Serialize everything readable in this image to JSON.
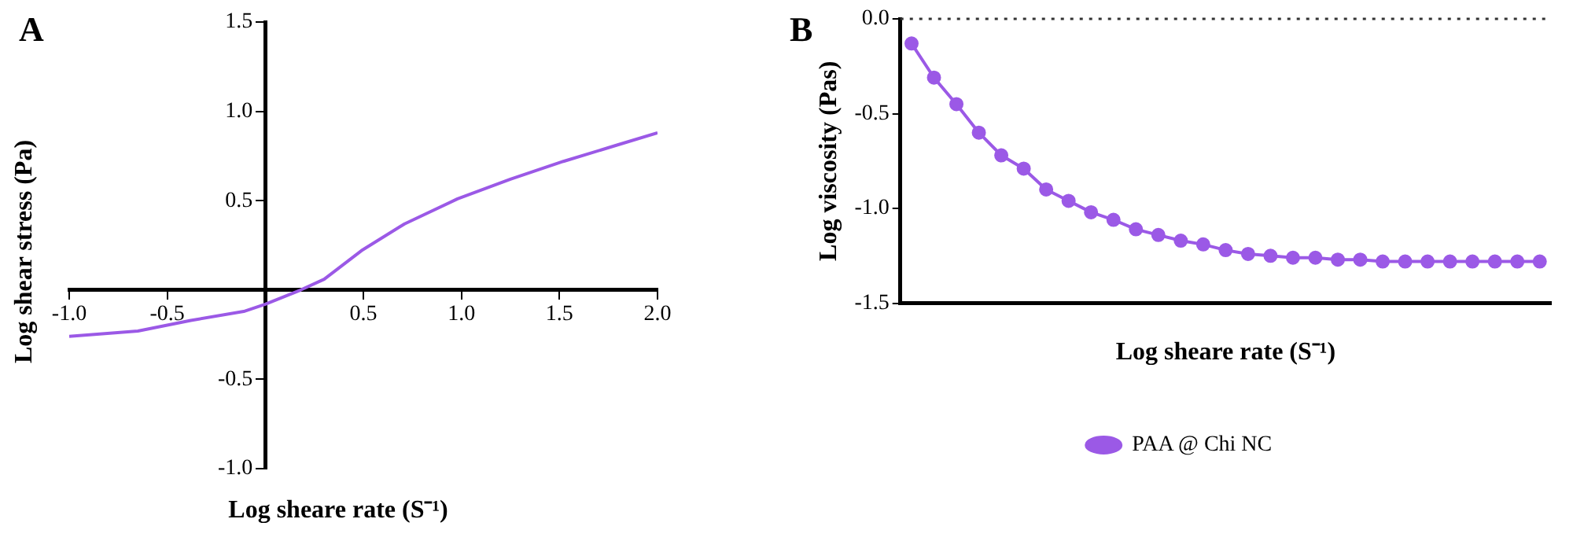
{
  "chart_data": [
    {
      "type": "line",
      "title": "A",
      "xlabel": "Log sheare rate (S⁻¹)",
      "ylabel": "Log shear stress (Pa)",
      "x": [
        -1.0,
        -0.65,
        -0.38,
        -0.11,
        0.0,
        0.18,
        0.3,
        0.49,
        0.71,
        0.98,
        1.25,
        1.52,
        1.79,
        2.0
      ],
      "series": [
        {
          "color": "#9b59e6",
          "values": [
            -0.26,
            -0.23,
            -0.17,
            -0.12,
            -0.08,
            0.0,
            0.06,
            0.22,
            0.37,
            0.51,
            0.62,
            0.72,
            0.81,
            0.88
          ]
        }
      ],
      "xlim": [
        -1.0,
        2.0
      ],
      "ylim": [
        -1.0,
        1.5
      ],
      "xticks": [
        {
          "value": -1.0,
          "label": "-1.0"
        },
        {
          "value": -0.5,
          "label": "-0.5"
        },
        {
          "value": 0.5,
          "label": "0.5"
        },
        {
          "value": 1.0,
          "label": "1.0"
        },
        {
          "value": 1.5,
          "label": "1.5"
        },
        {
          "value": 2.0,
          "label": "2.0"
        }
      ],
      "yticks": [
        {
          "value": -1.0,
          "label": "-1.0"
        },
        {
          "value": -0.5,
          "label": "-0.5"
        },
        {
          "value": 0.5,
          "label": "0.5"
        },
        {
          "value": 1.0,
          "label": "1.0"
        },
        {
          "value": 1.5,
          "label": "1.5"
        }
      ],
      "grid": false,
      "legend": false,
      "marker": "none",
      "line_style": "solid"
    },
    {
      "type": "line",
      "title": "B",
      "xlabel": "Log sheare rate (S⁻¹)",
      "ylabel": "Log viscosity (Pas)",
      "categories": [
        null,
        null,
        null,
        null,
        null,
        null,
        null,
        null,
        null,
        null,
        null,
        null,
        null,
        null,
        null,
        null,
        null,
        null,
        null,
        null,
        null,
        null,
        null,
        null,
        null,
        null,
        null,
        null,
        null
      ],
      "series": [
        {
          "name": "PAA @ Chi NC",
          "color": "#9b59e6",
          "values": [
            -0.13,
            -0.31,
            -0.45,
            -0.6,
            -0.72,
            -0.79,
            -0.9,
            -0.96,
            -1.02,
            -1.06,
            -1.11,
            -1.14,
            -1.17,
            -1.19,
            -1.22,
            -1.24,
            -1.25,
            -1.26,
            -1.26,
            -1.27,
            -1.27,
            -1.28,
            -1.28,
            -1.28,
            -1.28,
            -1.28,
            -1.28,
            -1.28,
            -1.28
          ]
        }
      ],
      "ylim": [
        -1.5,
        0.0
      ],
      "yticks": [
        {
          "value": -1.5,
          "label": "-1.5"
        },
        {
          "value": -1.0,
          "label": "-1.0"
        },
        {
          "value": -0.5,
          "label": "-0.5"
        },
        {
          "value": 0.0,
          "label": "0.0"
        }
      ],
      "ref_lines": [
        {
          "axis": "y",
          "value": 0.0,
          "line_style": "dotted",
          "color": "#333333"
        }
      ],
      "tick_labels": "y",
      "grid": false,
      "legend": "bottom",
      "marker": "circle",
      "line_style": "solid"
    }
  ]
}
